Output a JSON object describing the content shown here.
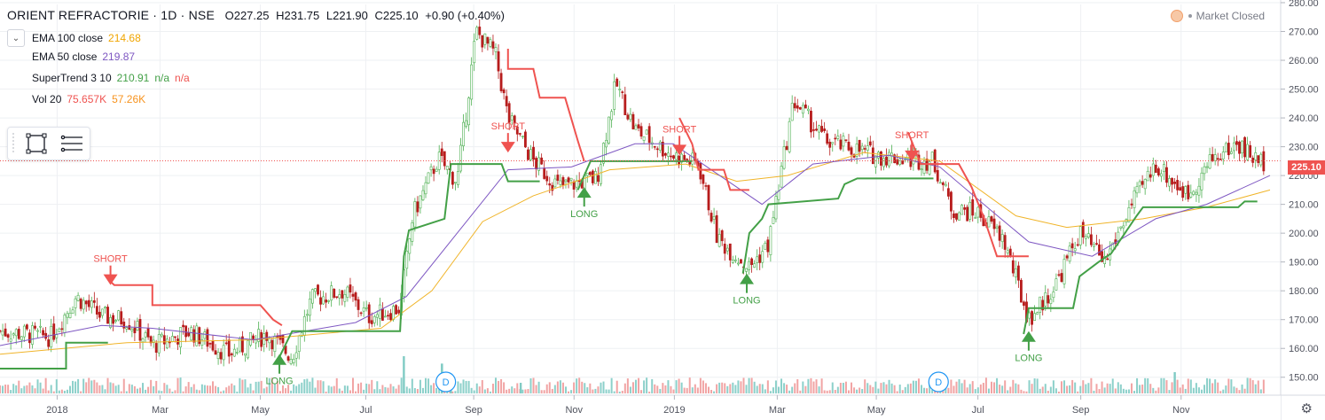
{
  "header": {
    "symbol": "ORIENT REFRACTORIE · 1D · NSE",
    "open": "O227.25",
    "high": "H231.75",
    "low": "L221.90",
    "close": "C225.10",
    "change": "+0.90 (+0.40%)"
  },
  "legend": [
    {
      "label": "EMA 100 close",
      "value": "214.68",
      "value2": "",
      "value3": "",
      "color": "#f0b429",
      "color2": ""
    },
    {
      "label": "EMA 50 close",
      "value": "219.87",
      "value2": "",
      "value3": "",
      "color": "#7e57c2",
      "color2": ""
    },
    {
      "label": "SuperTrend 3 10",
      "value": "210.91",
      "value2": "n/a",
      "value3": "n/a",
      "color": "#43a047",
      "color2": "#ef5350"
    },
    {
      "label": "Vol 20",
      "value": "75.657K",
      "value2": "57.26K",
      "value3": "",
      "color": "#ef5350",
      "color2": "#f7931e"
    }
  ],
  "status": {
    "market": "Market Closed"
  },
  "toolbar": {
    "icons": [
      "rectangle-select-icon",
      "menu-lines-icon"
    ]
  },
  "last_price": "225.10",
  "colors": {
    "up": "#26a69a",
    "down": "#ef5350",
    "candle_up": "#4caf50",
    "candle_down": "#b71c1c",
    "vol_up": "#80cbc4",
    "vol_down": "#ef9a9a",
    "grid": "#eef0f3"
  },
  "chart_data": {
    "type": "candlestick",
    "y_axis": {
      "min": 145,
      "max": 280,
      "ticks": [
        150,
        160,
        170,
        180,
        190,
        200,
        210,
        220,
        230,
        240,
        250,
        260,
        270,
        280
      ],
      "position": "right"
    },
    "x_axis": {
      "ticks": [
        "2018",
        "Mar",
        "May",
        "Jul",
        "Sep",
        "Nov",
        "2019",
        "Mar",
        "May",
        "Jul",
        "Sep",
        "Nov"
      ]
    },
    "grid": true,
    "price_path": [
      {
        "t": 0.0,
        "v": 166
      },
      {
        "t": 0.04,
        "v": 164
      },
      {
        "t": 0.06,
        "v": 178
      },
      {
        "t": 0.08,
        "v": 171
      },
      {
        "t": 0.1,
        "v": 170
      },
      {
        "t": 0.12,
        "v": 161
      },
      {
        "t": 0.15,
        "v": 166
      },
      {
        "t": 0.18,
        "v": 158
      },
      {
        "t": 0.21,
        "v": 165
      },
      {
        "t": 0.23,
        "v": 157
      },
      {
        "t": 0.245,
        "v": 177
      },
      {
        "t": 0.27,
        "v": 180
      },
      {
        "t": 0.29,
        "v": 171
      },
      {
        "t": 0.315,
        "v": 174
      },
      {
        "t": 0.325,
        "v": 206
      },
      {
        "t": 0.345,
        "v": 226
      },
      {
        "t": 0.36,
        "v": 218
      },
      {
        "t": 0.375,
        "v": 270
      },
      {
        "t": 0.39,
        "v": 262
      },
      {
        "t": 0.4,
        "v": 240
      },
      {
        "t": 0.42,
        "v": 225
      },
      {
        "t": 0.44,
        "v": 216
      },
      {
        "t": 0.47,
        "v": 219
      },
      {
        "t": 0.485,
        "v": 252
      },
      {
        "t": 0.5,
        "v": 236
      },
      {
        "t": 0.53,
        "v": 227
      },
      {
        "t": 0.55,
        "v": 224
      },
      {
        "t": 0.565,
        "v": 198
      },
      {
        "t": 0.59,
        "v": 188
      },
      {
        "t": 0.605,
        "v": 196
      },
      {
        "t": 0.625,
        "v": 246
      },
      {
        "t": 0.65,
        "v": 232
      },
      {
        "t": 0.69,
        "v": 227
      },
      {
        "t": 0.71,
        "v": 226
      },
      {
        "t": 0.735,
        "v": 225
      },
      {
        "t": 0.75,
        "v": 208
      },
      {
        "t": 0.77,
        "v": 207
      },
      {
        "t": 0.79,
        "v": 198
      },
      {
        "t": 0.81,
        "v": 170
      },
      {
        "t": 0.83,
        "v": 181
      },
      {
        "t": 0.85,
        "v": 200
      },
      {
        "t": 0.87,
        "v": 190
      },
      {
        "t": 0.89,
        "v": 209
      },
      {
        "t": 0.91,
        "v": 224
      },
      {
        "t": 0.935,
        "v": 213
      },
      {
        "t": 0.955,
        "v": 226
      },
      {
        "t": 0.975,
        "v": 231
      },
      {
        "t": 0.99,
        "v": 225
      }
    ],
    "ema50": [
      {
        "t": 0.0,
        "v": 161
      },
      {
        "t": 0.08,
        "v": 168
      },
      {
        "t": 0.12,
        "v": 167
      },
      {
        "t": 0.2,
        "v": 163
      },
      {
        "t": 0.28,
        "v": 169
      },
      {
        "t": 0.32,
        "v": 178
      },
      {
        "t": 0.36,
        "v": 200
      },
      {
        "t": 0.4,
        "v": 222
      },
      {
        "t": 0.45,
        "v": 223
      },
      {
        "t": 0.5,
        "v": 231
      },
      {
        "t": 0.53,
        "v": 231
      },
      {
        "t": 0.56,
        "v": 222
      },
      {
        "t": 0.6,
        "v": 210
      },
      {
        "t": 0.64,
        "v": 224
      },
      {
        "t": 0.7,
        "v": 227
      },
      {
        "t": 0.74,
        "v": 223
      },
      {
        "t": 0.78,
        "v": 208
      },
      {
        "t": 0.81,
        "v": 197
      },
      {
        "t": 0.86,
        "v": 192
      },
      {
        "t": 0.91,
        "v": 205
      },
      {
        "t": 0.95,
        "v": 210
      },
      {
        "t": 1.0,
        "v": 220
      }
    ],
    "ema100": [
      {
        "t": 0.0,
        "v": 158
      },
      {
        "t": 0.1,
        "v": 162
      },
      {
        "t": 0.2,
        "v": 163
      },
      {
        "t": 0.3,
        "v": 167
      },
      {
        "t": 0.34,
        "v": 180
      },
      {
        "t": 0.38,
        "v": 204
      },
      {
        "t": 0.42,
        "v": 213
      },
      {
        "t": 0.48,
        "v": 222
      },
      {
        "t": 0.54,
        "v": 224
      },
      {
        "t": 0.58,
        "v": 218
      },
      {
        "t": 0.62,
        "v": 220
      },
      {
        "t": 0.68,
        "v": 228
      },
      {
        "t": 0.74,
        "v": 225
      },
      {
        "t": 0.8,
        "v": 206
      },
      {
        "t": 0.84,
        "v": 202
      },
      {
        "t": 0.9,
        "v": 205
      },
      {
        "t": 0.95,
        "v": 209
      },
      {
        "t": 1.0,
        "v": 215
      }
    ],
    "supertrend_up": [
      [
        {
          "t": 0.0,
          "v": 153
        },
        {
          "t": 0.052,
          "v": 153
        },
        {
          "t": 0.052,
          "v": 162
        },
        {
          "t": 0.085,
          "v": 162
        }
      ],
      [
        {
          "t": 0.22,
          "v": 157
        },
        {
          "t": 0.23,
          "v": 166
        },
        {
          "t": 0.315,
          "v": 166
        },
        {
          "t": 0.318,
          "v": 192
        },
        {
          "t": 0.322,
          "v": 201
        },
        {
          "t": 0.35,
          "v": 205
        },
        {
          "t": 0.355,
          "v": 224
        },
        {
          "t": 0.395,
          "v": 224
        },
        {
          "t": 0.4,
          "v": 218
        },
        {
          "t": 0.425,
          "v": 218
        }
      ],
      [
        {
          "t": 0.455,
          "v": 215
        },
        {
          "t": 0.465,
          "v": 225
        },
        {
          "t": 0.545,
          "v": 225
        }
      ],
      [
        {
          "t": 0.585,
          "v": 186
        },
        {
          "t": 0.59,
          "v": 200
        },
        {
          "t": 0.6,
          "v": 205
        },
        {
          "t": 0.605,
          "v": 210
        },
        {
          "t": 0.66,
          "v": 212
        },
        {
          "t": 0.665,
          "v": 217
        },
        {
          "t": 0.675,
          "v": 219
        },
        {
          "t": 0.735,
          "v": 219
        }
      ],
      [
        {
          "t": 0.806,
          "v": 165
        },
        {
          "t": 0.81,
          "v": 174
        },
        {
          "t": 0.845,
          "v": 174
        },
        {
          "t": 0.85,
          "v": 185
        },
        {
          "t": 0.865,
          "v": 190
        },
        {
          "t": 0.875,
          "v": 193
        },
        {
          "t": 0.895,
          "v": 206
        },
        {
          "t": 0.9,
          "v": 209
        },
        {
          "t": 0.975,
          "v": 209
        },
        {
          "t": 0.98,
          "v": 211
        },
        {
          "t": 0.99,
          "v": 211
        }
      ]
    ],
    "supertrend_down": [
      [
        {
          "t": 0.085,
          "v": 184
        },
        {
          "t": 0.09,
          "v": 182
        },
        {
          "t": 0.12,
          "v": 182
        },
        {
          "t": 0.12,
          "v": 175
        },
        {
          "t": 0.205,
          "v": 175
        },
        {
          "t": 0.215,
          "v": 170
        },
        {
          "t": 0.222,
          "v": 168
        }
      ],
      [
        {
          "t": 0.4,
          "v": 264
        },
        {
          "t": 0.4,
          "v": 257
        },
        {
          "t": 0.42,
          "v": 257
        },
        {
          "t": 0.425,
          "v": 247
        },
        {
          "t": 0.445,
          "v": 247
        },
        {
          "t": 0.455,
          "v": 232
        },
        {
          "t": 0.46,
          "v": 225
        }
      ],
      [
        {
          "t": 0.535,
          "v": 240
        },
        {
          "t": 0.545,
          "v": 231
        },
        {
          "t": 0.55,
          "v": 222
        },
        {
          "t": 0.57,
          "v": 222
        },
        {
          "t": 0.575,
          "v": 215
        },
        {
          "t": 0.59,
          "v": 215
        }
      ],
      [
        {
          "t": 0.715,
          "v": 235
        },
        {
          "t": 0.725,
          "v": 224
        },
        {
          "t": 0.755,
          "v": 224
        },
        {
          "t": 0.765,
          "v": 216
        },
        {
          "t": 0.775,
          "v": 205
        },
        {
          "t": 0.785,
          "v": 192
        },
        {
          "t": 0.81,
          "v": 192
        }
      ]
    ],
    "signals": [
      {
        "label": "SHORT",
        "t": 0.087,
        "v": 182,
        "dir": "down"
      },
      {
        "label": "LONG",
        "t": 0.22,
        "v": 158,
        "dir": "up"
      },
      {
        "label": "SHORT",
        "t": 0.4,
        "v": 228,
        "dir": "down"
      },
      {
        "label": "LONG",
        "t": 0.46,
        "v": 216,
        "dir": "up"
      },
      {
        "label": "SHORT",
        "t": 0.535,
        "v": 227,
        "dir": "down"
      },
      {
        "label": "LONG",
        "t": 0.588,
        "v": 186,
        "dir": "up"
      },
      {
        "label": "SHORT",
        "t": 0.718,
        "v": 225,
        "dir": "down"
      },
      {
        "label": "LONG",
        "t": 0.81,
        "v": 166,
        "dir": "up"
      }
    ],
    "volume_spikes": [
      {
        "t": 0.318,
        "h": 0.35
      },
      {
        "t": 0.348,
        "h": 0.28
      },
      {
        "t": 0.355,
        "h": 0.18
      },
      {
        "t": 0.348,
        "h": 0.28
      },
      {
        "t": 0.925,
        "h": 0.2
      },
      {
        "t": 0.41,
        "h": 0.1
      }
    ],
    "events": [
      {
        "label": "D",
        "t": 0.351
      },
      {
        "label": "D",
        "t": 0.739
      }
    ]
  }
}
